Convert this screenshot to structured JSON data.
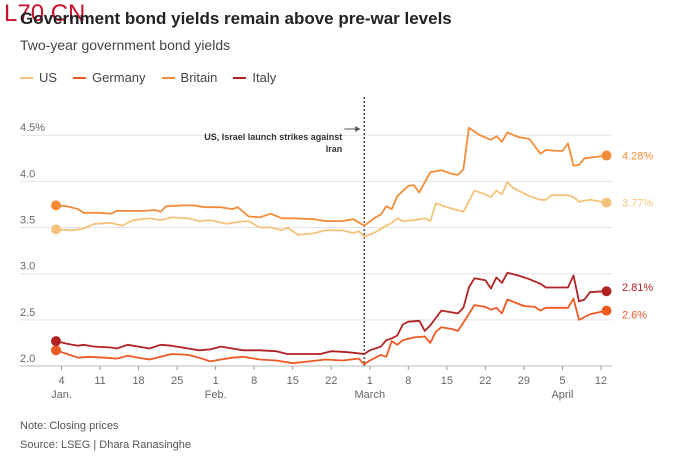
{
  "watermark": "L70 CN",
  "chart_data": {
    "type": "line",
    "title": "Government bond yields remain above pre-war levels",
    "subtitle": "Two-year government bond yields",
    "xlabel": "",
    "ylabel": "",
    "ylim": [
      2.0,
      4.6
    ],
    "yticks": [
      2.0,
      2.5,
      3.0,
      3.5,
      4.0,
      4.5
    ],
    "ytick_labels": [
      "2.0",
      "2.5",
      "3.0",
      "3.5",
      "4.0",
      "4.5%"
    ],
    "grid": true,
    "legend_position": "top-left",
    "xlim": [
      "2025-01-03",
      "2025-04-14"
    ],
    "xticks": [
      {
        "date": "2025-01-04",
        "label": "4"
      },
      {
        "date": "2025-01-11",
        "label": "11"
      },
      {
        "date": "2025-01-18",
        "label": "18"
      },
      {
        "date": "2025-01-25",
        "label": "25"
      },
      {
        "date": "2025-02-01",
        "label": "1"
      },
      {
        "date": "2025-02-08",
        "label": "8"
      },
      {
        "date": "2025-02-15",
        "label": "15"
      },
      {
        "date": "2025-02-22",
        "label": "22"
      },
      {
        "date": "2025-03-01",
        "label": "1"
      },
      {
        "date": "2025-03-08",
        "label": "8"
      },
      {
        "date": "2025-03-15",
        "label": "15"
      },
      {
        "date": "2025-03-22",
        "label": "22"
      },
      {
        "date": "2025-03-29",
        "label": "29"
      },
      {
        "date": "2025-04-05",
        "label": "5"
      },
      {
        "date": "2025-04-12",
        "label": "12"
      }
    ],
    "month_labels": [
      {
        "date": "2025-01-04",
        "label": "Jan."
      },
      {
        "date": "2025-02-01",
        "label": "Feb."
      },
      {
        "date": "2025-03-01",
        "label": "March"
      },
      {
        "date": "2025-04-05",
        "label": "April"
      }
    ],
    "annotation": {
      "date": "2025-02-28",
      "text_lines": [
        "US, Israel launch strikes against",
        "Iran"
      ]
    },
    "series": [
      {
        "name": "US",
        "color": "#f5c27a",
        "end_label": "3.77%",
        "points": [
          [
            "2025-01-03",
            3.48
          ],
          [
            "2025-01-06",
            3.47
          ],
          [
            "2025-01-08",
            3.49
          ],
          [
            "2025-01-10",
            3.54
          ],
          [
            "2025-01-13",
            3.55
          ],
          [
            "2025-01-15",
            3.52
          ],
          [
            "2025-01-17",
            3.58
          ],
          [
            "2025-01-20",
            3.6
          ],
          [
            "2025-01-22",
            3.58
          ],
          [
            "2025-01-24",
            3.61
          ],
          [
            "2025-01-27",
            3.6
          ],
          [
            "2025-01-29",
            3.57
          ],
          [
            "2025-01-31",
            3.58
          ],
          [
            "2025-02-03",
            3.54
          ],
          [
            "2025-02-05",
            3.56
          ],
          [
            "2025-02-07",
            3.57
          ],
          [
            "2025-02-09",
            3.5
          ],
          [
            "2025-02-11",
            3.5
          ],
          [
            "2025-02-13",
            3.47
          ],
          [
            "2025-02-14",
            3.5
          ],
          [
            "2025-02-16",
            3.42
          ],
          [
            "2025-02-19",
            3.44
          ],
          [
            "2025-02-21",
            3.47
          ],
          [
            "2025-02-24",
            3.47
          ],
          [
            "2025-02-26",
            3.44
          ],
          [
            "2025-02-27",
            3.46
          ],
          [
            "2025-02-28",
            3.4
          ],
          [
            "2025-03-02",
            3.45
          ],
          [
            "2025-03-04",
            3.52
          ],
          [
            "2025-03-05",
            3.55
          ],
          [
            "2025-03-06",
            3.6
          ],
          [
            "2025-03-07",
            3.57
          ],
          [
            "2025-03-09",
            3.58
          ],
          [
            "2025-03-11",
            3.6
          ],
          [
            "2025-03-12",
            3.57
          ],
          [
            "2025-03-13",
            3.76
          ],
          [
            "2025-03-15",
            3.72
          ],
          [
            "2025-03-18",
            3.67
          ],
          [
            "2025-03-20",
            3.9
          ],
          [
            "2025-03-22",
            3.86
          ],
          [
            "2025-03-23",
            3.83
          ],
          [
            "2025-03-24",
            3.9
          ],
          [
            "2025-03-25",
            3.86
          ],
          [
            "2025-03-26",
            3.99
          ],
          [
            "2025-03-27",
            3.93
          ],
          [
            "2025-03-30",
            3.84
          ],
          [
            "2025-04-01",
            3.8
          ],
          [
            "2025-04-02",
            3.8
          ],
          [
            "2025-04-03",
            3.85
          ],
          [
            "2025-04-06",
            3.85
          ],
          [
            "2025-04-07",
            3.83
          ],
          [
            "2025-04-08",
            3.78
          ],
          [
            "2025-04-10",
            3.8
          ],
          [
            "2025-04-13",
            3.77
          ]
        ]
      },
      {
        "name": "Germany",
        "color": "#ee5a24",
        "end_label": "2.6%",
        "points": [
          [
            "2025-01-03",
            2.17
          ],
          [
            "2025-01-05",
            2.13
          ],
          [
            "2025-01-07",
            2.09
          ],
          [
            "2025-01-09",
            2.1
          ],
          [
            "2025-01-12",
            2.09
          ],
          [
            "2025-01-14",
            2.08
          ],
          [
            "2025-01-16",
            2.11
          ],
          [
            "2025-01-18",
            2.09
          ],
          [
            "2025-01-20",
            2.07
          ],
          [
            "2025-01-22",
            2.1
          ],
          [
            "2025-01-24",
            2.13
          ],
          [
            "2025-01-27",
            2.12
          ],
          [
            "2025-01-29",
            2.09
          ],
          [
            "2025-01-31",
            2.05
          ],
          [
            "2025-02-02",
            2.07
          ],
          [
            "2025-02-04",
            2.09
          ],
          [
            "2025-02-06",
            2.1
          ],
          [
            "2025-02-09",
            2.07
          ],
          [
            "2025-02-12",
            2.06
          ],
          [
            "2025-02-15",
            2.03
          ],
          [
            "2025-02-18",
            2.05
          ],
          [
            "2025-02-21",
            2.07
          ],
          [
            "2025-02-24",
            2.06
          ],
          [
            "2025-02-27",
            2.08
          ],
          [
            "2025-02-28",
            2.02
          ],
          [
            "2025-03-01",
            2.06
          ],
          [
            "2025-03-03",
            2.12
          ],
          [
            "2025-03-04",
            2.1
          ],
          [
            "2025-03-05",
            2.27
          ],
          [
            "2025-03-06",
            2.23
          ],
          [
            "2025-03-07",
            2.28
          ],
          [
            "2025-03-09",
            2.31
          ],
          [
            "2025-03-11",
            2.32
          ],
          [
            "2025-03-12",
            2.25
          ],
          [
            "2025-03-13",
            2.37
          ],
          [
            "2025-03-14",
            2.42
          ],
          [
            "2025-03-16",
            2.4
          ],
          [
            "2025-03-17",
            2.38
          ],
          [
            "2025-03-18",
            2.47
          ],
          [
            "2025-03-20",
            2.66
          ],
          [
            "2025-03-22",
            2.64
          ],
          [
            "2025-03-23",
            2.61
          ],
          [
            "2025-03-24",
            2.63
          ],
          [
            "2025-03-25",
            2.57
          ],
          [
            "2025-03-26",
            2.72
          ],
          [
            "2025-03-29",
            2.65
          ],
          [
            "2025-03-31",
            2.64
          ],
          [
            "2025-04-01",
            2.6
          ],
          [
            "2025-04-02",
            2.63
          ],
          [
            "2025-04-04",
            2.63
          ],
          [
            "2025-04-06",
            2.63
          ],
          [
            "2025-04-07",
            2.73
          ],
          [
            "2025-04-08",
            2.5
          ],
          [
            "2025-04-10",
            2.56
          ],
          [
            "2025-04-13",
            2.6
          ]
        ]
      },
      {
        "name": "Britain",
        "color": "#f28c38",
        "end_label": "4.28%",
        "points": [
          [
            "2025-01-03",
            3.74
          ],
          [
            "2025-01-05",
            3.73
          ],
          [
            "2025-01-07",
            3.7
          ],
          [
            "2025-01-08",
            3.66
          ],
          [
            "2025-01-11",
            3.66
          ],
          [
            "2025-01-13",
            3.65
          ],
          [
            "2025-01-14",
            3.68
          ],
          [
            "2025-01-16",
            3.68
          ],
          [
            "2025-01-19",
            3.68
          ],
          [
            "2025-01-21",
            3.69
          ],
          [
            "2025-01-22",
            3.67
          ],
          [
            "2025-01-23",
            3.73
          ],
          [
            "2025-01-26",
            3.74
          ],
          [
            "2025-01-28",
            3.74
          ],
          [
            "2025-01-30",
            3.72
          ],
          [
            "2025-02-02",
            3.72
          ],
          [
            "2025-02-04",
            3.7
          ],
          [
            "2025-02-05",
            3.72
          ],
          [
            "2025-02-07",
            3.62
          ],
          [
            "2025-02-09",
            3.61
          ],
          [
            "2025-02-11",
            3.65
          ],
          [
            "2025-02-13",
            3.6
          ],
          [
            "2025-02-15",
            3.6
          ],
          [
            "2025-02-19",
            3.59
          ],
          [
            "2025-02-21",
            3.57
          ],
          [
            "2025-02-24",
            3.57
          ],
          [
            "2025-02-26",
            3.59
          ],
          [
            "2025-02-28",
            3.52
          ],
          [
            "2025-03-02",
            3.61
          ],
          [
            "2025-03-03",
            3.64
          ],
          [
            "2025-03-04",
            3.73
          ],
          [
            "2025-03-05",
            3.7
          ],
          [
            "2025-03-06",
            3.84
          ],
          [
            "2025-03-08",
            3.95
          ],
          [
            "2025-03-09",
            3.96
          ],
          [
            "2025-03-10",
            3.88
          ],
          [
            "2025-03-11",
            3.99
          ],
          [
            "2025-03-12",
            4.1
          ],
          [
            "2025-03-14",
            4.12
          ],
          [
            "2025-03-16",
            4.08
          ],
          [
            "2025-03-17",
            4.07
          ],
          [
            "2025-03-18",
            4.13
          ],
          [
            "2025-03-19",
            4.58
          ],
          [
            "2025-03-21",
            4.5
          ],
          [
            "2025-03-23",
            4.45
          ],
          [
            "2025-03-24",
            4.49
          ],
          [
            "2025-03-25",
            4.43
          ],
          [
            "2025-03-26",
            4.53
          ],
          [
            "2025-03-28",
            4.48
          ],
          [
            "2025-03-30",
            4.46
          ],
          [
            "2025-04-01",
            4.3
          ],
          [
            "2025-04-02",
            4.34
          ],
          [
            "2025-04-04",
            4.33
          ],
          [
            "2025-04-05",
            4.33
          ],
          [
            "2025-04-06",
            4.41
          ],
          [
            "2025-04-07",
            4.17
          ],
          [
            "2025-04-08",
            4.18
          ],
          [
            "2025-04-09",
            4.25
          ],
          [
            "2025-04-13",
            4.28
          ]
        ]
      },
      {
        "name": "Italy",
        "color": "#b22222",
        "end_label": "2.81%",
        "points": [
          [
            "2025-01-03",
            2.27
          ],
          [
            "2025-01-05",
            2.24
          ],
          [
            "2025-01-07",
            2.22
          ],
          [
            "2025-01-08",
            2.23
          ],
          [
            "2025-01-10",
            2.21
          ],
          [
            "2025-01-13",
            2.2
          ],
          [
            "2025-01-14",
            2.19
          ],
          [
            "2025-01-16",
            2.23
          ],
          [
            "2025-01-18",
            2.21
          ],
          [
            "2025-01-20",
            2.19
          ],
          [
            "2025-01-22",
            2.23
          ],
          [
            "2025-01-24",
            2.22
          ],
          [
            "2025-01-27",
            2.19
          ],
          [
            "2025-01-29",
            2.17
          ],
          [
            "2025-01-31",
            2.18
          ],
          [
            "2025-02-02",
            2.21
          ],
          [
            "2025-02-04",
            2.19
          ],
          [
            "2025-02-06",
            2.17
          ],
          [
            "2025-02-09",
            2.17
          ],
          [
            "2025-02-12",
            2.16
          ],
          [
            "2025-02-14",
            2.13
          ],
          [
            "2025-02-17",
            2.13
          ],
          [
            "2025-02-20",
            2.13
          ],
          [
            "2025-02-22",
            2.16
          ],
          [
            "2025-02-25",
            2.15
          ],
          [
            "2025-02-28",
            2.13
          ],
          [
            "2025-03-01",
            2.17
          ],
          [
            "2025-03-03",
            2.21
          ],
          [
            "2025-03-04",
            2.28
          ],
          [
            "2025-03-05",
            2.3
          ],
          [
            "2025-03-06",
            2.33
          ],
          [
            "2025-03-07",
            2.45
          ],
          [
            "2025-03-08",
            2.48
          ],
          [
            "2025-03-10",
            2.49
          ],
          [
            "2025-03-11",
            2.38
          ],
          [
            "2025-03-12",
            2.44
          ],
          [
            "2025-03-14",
            2.6
          ],
          [
            "2025-03-17",
            2.57
          ],
          [
            "2025-03-18",
            2.63
          ],
          [
            "2025-03-19",
            2.85
          ],
          [
            "2025-03-20",
            2.95
          ],
          [
            "2025-03-22",
            2.93
          ],
          [
            "2025-03-23",
            2.84
          ],
          [
            "2025-03-24",
            2.96
          ],
          [
            "2025-03-25",
            2.9
          ],
          [
            "2025-03-26",
            3.01
          ],
          [
            "2025-03-28",
            2.98
          ],
          [
            "2025-03-30",
            2.94
          ],
          [
            "2025-04-01",
            2.89
          ],
          [
            "2025-04-02",
            2.85
          ],
          [
            "2025-04-04",
            2.85
          ],
          [
            "2025-04-06",
            2.85
          ],
          [
            "2025-04-07",
            2.98
          ],
          [
            "2025-04-08",
            2.7
          ],
          [
            "2025-04-09",
            2.72
          ],
          [
            "2025-04-10",
            2.8
          ],
          [
            "2025-04-13",
            2.81
          ]
        ]
      }
    ]
  },
  "footer": {
    "note": "Note: Closing prices",
    "source": "Source: LSEG | Dhara Ranasinghe"
  }
}
